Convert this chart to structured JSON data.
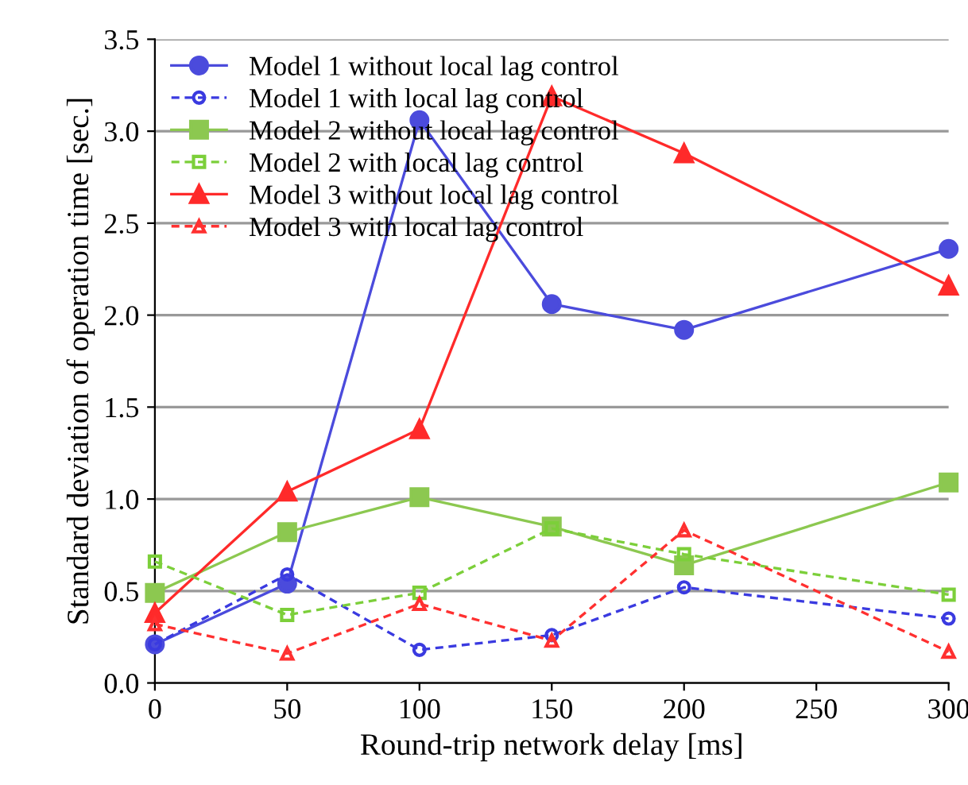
{
  "chart_data": {
    "type": "line",
    "xlabel": "Round-trip network delay [ms]",
    "ylabel": "Standard deviation of operation time [sec.]",
    "x": [
      0,
      50,
      100,
      150,
      200,
      300
    ],
    "xlim": [
      0,
      300
    ],
    "xticks": [
      0,
      50,
      100,
      150,
      200,
      250,
      300
    ],
    "ylim": [
      0,
      3.5
    ],
    "yticks": [
      {
        "value": 0,
        "label": "0.0"
      },
      {
        "value": 0.5,
        "label": "0.5"
      },
      {
        "value": 1,
        "label": "1.0"
      },
      {
        "value": 1.5,
        "label": "1.5"
      },
      {
        "value": 2,
        "label": "2.0"
      },
      {
        "value": 2.5,
        "label": "2.5"
      },
      {
        "value": 3,
        "label": "3.0"
      },
      {
        "value": 3.5,
        "label": "3.5"
      }
    ],
    "grid": "y",
    "legend": "top left",
    "series": [
      {
        "name": "Model 1 without local lag control",
        "color": "#4b4bdc",
        "marker": "circle",
        "line_style": "solid",
        "values": [
          0.21,
          0.54,
          3.06,
          2.06,
          1.92,
          2.36
        ]
      },
      {
        "name": "Model 1 with local lag control",
        "color": "#3a3ae0",
        "marker": "circle",
        "line_style": "dashed",
        "values": [
          0.21,
          0.59,
          0.18,
          0.26,
          0.52,
          0.35
        ]
      },
      {
        "name": "Model 2 without local lag control",
        "color": "#8cc850",
        "marker": "square",
        "line_style": "solid",
        "values": [
          0.49,
          0.82,
          1.01,
          0.85,
          0.64,
          1.09
        ]
      },
      {
        "name": "Model 2 with local lag control",
        "color": "#7ccf3a",
        "marker": "square",
        "line_style": "dashed",
        "values": [
          0.66,
          0.37,
          0.49,
          0.84,
          0.7,
          0.48
        ]
      },
      {
        "name": "Model 3 without local lag control",
        "color": "#ff2a2a",
        "marker": "triangle",
        "line_style": "solid",
        "values": [
          0.38,
          1.04,
          1.38,
          3.19,
          2.88,
          2.16
        ]
      },
      {
        "name": "Model 3 with local lag control",
        "color": "#ff3030",
        "marker": "triangle",
        "line_style": "dashed",
        "values": [
          0.32,
          0.16,
          0.43,
          0.23,
          0.83,
          0.17
        ]
      }
    ]
  }
}
